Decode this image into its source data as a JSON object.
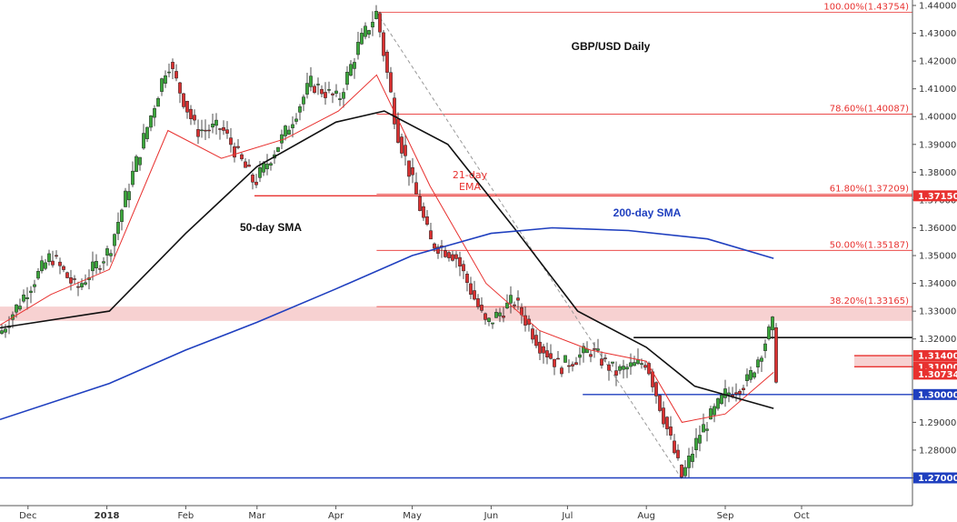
{
  "chart_data": {
    "type": "line",
    "title": "GBP/USD Daily",
    "ylim": [
      1.26,
      1.44
    ],
    "y_ticks": [
      "1.44000",
      "1.43000",
      "1.42000",
      "1.41000",
      "1.40000",
      "1.39000",
      "1.38000",
      "1.37000",
      "1.36000",
      "1.35000",
      "1.34000",
      "1.33000",
      "1.32000",
      "1.31000",
      "1.30000",
      "1.29000",
      "1.28000",
      "1.27000"
    ],
    "x_ticks": [
      "Dec",
      "2018",
      "Feb",
      "Mar",
      "Apr",
      "May",
      "Jun",
      "Jul",
      "Aug",
      "Sep",
      "Oct"
    ],
    "series": [
      {
        "name": "GBP/USD Daily",
        "color": "#222222",
        "x": [
          "Nov 20",
          "Dec 1",
          "Dec 10",
          "Dec 20",
          "Jan 2",
          "Jan 12",
          "Jan 25",
          "Feb 5",
          "Feb 15",
          "Feb 28",
          "Mar 12",
          "Mar 22",
          "Apr 2",
          "Apr 10",
          "Apr 17",
          "Apr 25",
          "May 8",
          "May 18",
          "May 30",
          "Jun 10",
          "Jun 20",
          "Jun 28",
          "Jul 10",
          "Jul 20",
          "Aug 1",
          "Aug 10",
          "Aug 15",
          "Aug 22",
          "Sep 1",
          "Sep 10",
          "Sep 20",
          "Sep 21"
        ],
        "values": [
          1.322,
          1.338,
          1.35,
          1.338,
          1.352,
          1.382,
          1.42,
          1.395,
          1.396,
          1.376,
          1.394,
          1.412,
          1.406,
          1.426,
          1.4375,
          1.395,
          1.355,
          1.35,
          1.325,
          1.334,
          1.318,
          1.31,
          1.316,
          1.308,
          1.312,
          1.285,
          1.27,
          1.286,
          1.3,
          1.305,
          1.326,
          1.307
        ]
      },
      {
        "name": "21-day EMA",
        "color": "#e8312f",
        "x": [
          "Nov 20",
          "Dec 10",
          "Jan 2",
          "Jan 25",
          "Feb 15",
          "Mar 12",
          "Apr 2",
          "Apr 17",
          "May 8",
          "May 30",
          "Jun 20",
          "Jul 10",
          "Aug 1",
          "Aug 15",
          "Sep 1",
          "Sep 20"
        ],
        "values": [
          1.325,
          1.336,
          1.345,
          1.395,
          1.385,
          1.392,
          1.402,
          1.415,
          1.375,
          1.34,
          1.323,
          1.316,
          1.312,
          1.29,
          1.293,
          1.308
        ]
      },
      {
        "name": "50-day SMA",
        "color": "#111111",
        "x": [
          "Nov 20",
          "Jan 2",
          "Feb 1",
          "Mar 1",
          "Apr 1",
          "Apr 20",
          "May 15",
          "Jun 10",
          "Jul 5",
          "Aug 1",
          "Aug 20",
          "Sep 20"
        ],
        "values": [
          1.324,
          1.33,
          1.358,
          1.382,
          1.398,
          1.402,
          1.39,
          1.36,
          1.33,
          1.317,
          1.303,
          1.295
        ]
      },
      {
        "name": "200-day SMA",
        "color": "#1f3fbf",
        "x": [
          "Nov 20",
          "Jan 2",
          "Feb 1",
          "Mar 1",
          "Apr 1",
          "May 1",
          "Jun 1",
          "Jun 25",
          "Jul 25",
          "Aug 25",
          "Sep 20"
        ],
        "values": [
          1.291,
          1.304,
          1.316,
          1.326,
          1.338,
          1.35,
          1.358,
          1.36,
          1.359,
          1.356,
          1.349
        ]
      }
    ],
    "fibonacci": [
      {
        "label": "100.00%(1.43754)",
        "value": 1.43754
      },
      {
        "label": "78.60%(1.40087)",
        "value": 1.40087
      },
      {
        "label": "61.80%(1.37209)",
        "value": 1.37209
      },
      {
        "label": "50.00%(1.35187)",
        "value": 1.35187
      },
      {
        "label": "38.20%(1.33165)",
        "value": 1.33165
      }
    ],
    "levels": [
      {
        "label": "1.37150",
        "value": 1.3715,
        "color": "#e8312f"
      },
      {
        "label": "1.31400",
        "value": 1.314,
        "color": "#e8312f"
      },
      {
        "label": "1.31000",
        "value": 1.31,
        "color": "#e8312f"
      },
      {
        "label": "1.30734",
        "value": 1.30734,
        "color": "#e8312f"
      },
      {
        "label": "1.30000",
        "value": 1.3,
        "color": "#1f3fbf"
      },
      {
        "label": "1.27000",
        "value": 1.27,
        "color": "#1f3fbf"
      }
    ],
    "annotations": [
      "GBP/USD Daily",
      "50-day SMA",
      "200-day SMA",
      "21-day",
      "EMA"
    ],
    "grid": false
  }
}
